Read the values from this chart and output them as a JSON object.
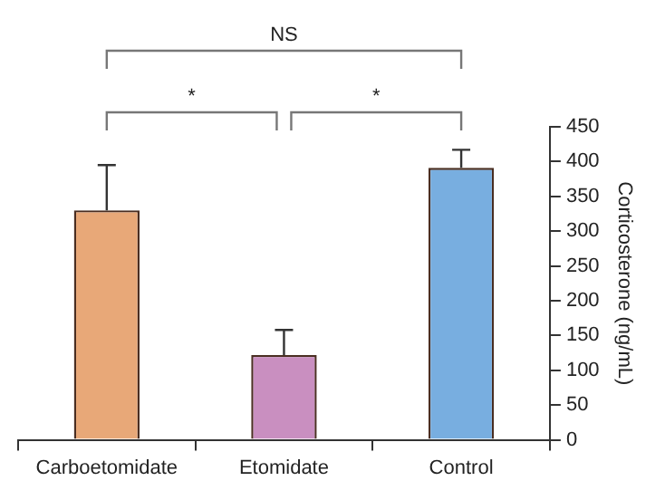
{
  "chart_data": {
    "type": "bar",
    "ylabel": "Corticosterone (ng/mL)",
    "categories": [
      "Carboetomidate",
      "Etomidate",
      "Control"
    ],
    "values": [
      330,
      122,
      391
    ],
    "colors": [
      "#e8a878",
      "#c98fc0",
      "#78aee0"
    ],
    "errors": [
      65,
      36,
      26
    ],
    "ylim": [
      0,
      450
    ],
    "yticks": [
      0,
      50,
      100,
      150,
      200,
      250,
      300,
      350,
      400,
      450
    ],
    "grid": false,
    "legend": false,
    "annotations": [
      "*",
      "*",
      "NS"
    ]
  }
}
